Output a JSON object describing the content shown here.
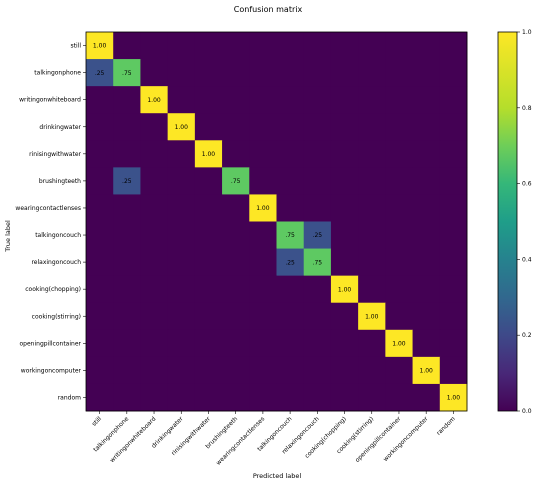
{
  "chart_data": {
    "type": "heatmap",
    "title": "Confusion matrix",
    "xlabel": "Predicted label",
    "ylabel": "True label",
    "row_labels": [
      "still",
      "talkingonphone",
      "writingonwhiteboard",
      "drinkingwater",
      "rinisingwithwater",
      "brushingteeth",
      "wearingcontactlenses",
      "talkingoncouch",
      "relaxingoncouch",
      "cooking(chopping)",
      "cooking(stirring)",
      "openingpillcontainer",
      "workingoncomputer",
      "random"
    ],
    "col_labels": [
      "still",
      "talkingonphone",
      "writingonwhiteboard",
      "drinkingwater",
      "rinisingwithwater",
      "brushingteeth",
      "wearingcontactlenses",
      "talkingoncouch",
      "relaxingoncouch",
      "cooking(chopping)",
      "cooking(stirring)",
      "openingpillcontainer",
      "workingoncomputer",
      "random"
    ],
    "values": [
      [
        1.0,
        0,
        0,
        0,
        0,
        0,
        0,
        0,
        0,
        0,
        0,
        0,
        0,
        0
      ],
      [
        0.25,
        0.75,
        0,
        0,
        0,
        0,
        0,
        0,
        0,
        0,
        0,
        0,
        0,
        0
      ],
      [
        0,
        0,
        1.0,
        0,
        0,
        0,
        0,
        0,
        0,
        0,
        0,
        0,
        0,
        0
      ],
      [
        0,
        0,
        0,
        1.0,
        0,
        0,
        0,
        0,
        0,
        0,
        0,
        0,
        0,
        0
      ],
      [
        0,
        0,
        0,
        0,
        1.0,
        0,
        0,
        0,
        0,
        0,
        0,
        0,
        0,
        0
      ],
      [
        0,
        0.25,
        0,
        0,
        0,
        0.75,
        0,
        0,
        0,
        0,
        0,
        0,
        0,
        0
      ],
      [
        0,
        0,
        0,
        0,
        0,
        0,
        1.0,
        0,
        0,
        0,
        0,
        0,
        0,
        0
      ],
      [
        0,
        0,
        0,
        0,
        0,
        0,
        0,
        0.75,
        0.25,
        0,
        0,
        0,
        0,
        0
      ],
      [
        0,
        0,
        0,
        0,
        0,
        0,
        0,
        0.25,
        0.75,
        0,
        0,
        0,
        0,
        0
      ],
      [
        0,
        0,
        0,
        0,
        0,
        0,
        0,
        0,
        0,
        1.0,
        0,
        0,
        0,
        0
      ],
      [
        0,
        0,
        0,
        0,
        0,
        0,
        0,
        0,
        0,
        0,
        1.0,
        0,
        0,
        0
      ],
      [
        0,
        0,
        0,
        0,
        0,
        0,
        0,
        0,
        0,
        0,
        0,
        1.0,
        0,
        0
      ],
      [
        0,
        0,
        0,
        0,
        0,
        0,
        0,
        0,
        0,
        0,
        0,
        0,
        1.0,
        0
      ],
      [
        0,
        0,
        0,
        0,
        0,
        0,
        0,
        0,
        0,
        0,
        0,
        0,
        0,
        1.0
      ]
    ],
    "cell_labels": [
      [
        "1.00",
        "",
        "",
        "",
        "",
        "",
        "",
        "",
        "",
        "",
        "",
        "",
        "",
        ""
      ],
      [
        ".25",
        ".75",
        "",
        "",
        "",
        "",
        "",
        "",
        "",
        "",
        "",
        "",
        "",
        ""
      ],
      [
        "",
        "",
        "1.00",
        "",
        "",
        "",
        "",
        "",
        "",
        "",
        "",
        "",
        "",
        ""
      ],
      [
        "",
        "",
        "",
        "1.00",
        "",
        "",
        "",
        "",
        "",
        "",
        "",
        "",
        "",
        ""
      ],
      [
        "",
        "",
        "",
        "",
        "1.00",
        "",
        "",
        "",
        "",
        "",
        "",
        "",
        "",
        ""
      ],
      [
        "",
        ".25",
        "",
        "",
        "",
        ".75",
        "",
        "",
        "",
        "",
        "",
        "",
        "",
        ""
      ],
      [
        "",
        "",
        "",
        "",
        "",
        "",
        "1.00",
        "",
        "",
        "",
        "",
        "",
        "",
        ""
      ],
      [
        "",
        "",
        "",
        "",
        "",
        "",
        "",
        ".75",
        ".25",
        "",
        "",
        "",
        "",
        ""
      ],
      [
        "",
        "",
        "",
        "",
        "",
        "",
        "",
        ".25",
        ".75",
        "",
        "",
        "",
        "",
        ""
      ],
      [
        "",
        "",
        "",
        "",
        "",
        "",
        "",
        "",
        "",
        "1.00",
        "",
        "",
        "",
        ""
      ],
      [
        "",
        "",
        "",
        "",
        "",
        "",
        "",
        "",
        "",
        "",
        "1.00",
        "",
        "",
        ""
      ],
      [
        "",
        "",
        "",
        "",
        "",
        "",
        "",
        "",
        "",
        "",
        "",
        "1.00",
        "",
        ""
      ],
      [
        "",
        "",
        "",
        "",
        "",
        "",
        "",
        "",
        "",
        "",
        "",
        "",
        "1.00",
        ""
      ],
      [
        "",
        "",
        "",
        "",
        "",
        "",
        "",
        "",
        "",
        "",
        "",
        "",
        "",
        "1.00"
      ]
    ],
    "colorbar": {
      "range": [
        0,
        1
      ],
      "ticks": [
        0,
        0.2,
        0.4,
        0.6,
        0.8,
        1
      ],
      "tick_labels": [
        "0.0",
        "0.2",
        "0.4",
        "0.6",
        "0.8",
        "1.0"
      ]
    },
    "colormap": "viridis",
    "colors": {
      "low": "#440154",
      "quarter": "#3b528b",
      "three_quarter": "#5ec962",
      "high": "#fde725"
    },
    "grid": false
  }
}
